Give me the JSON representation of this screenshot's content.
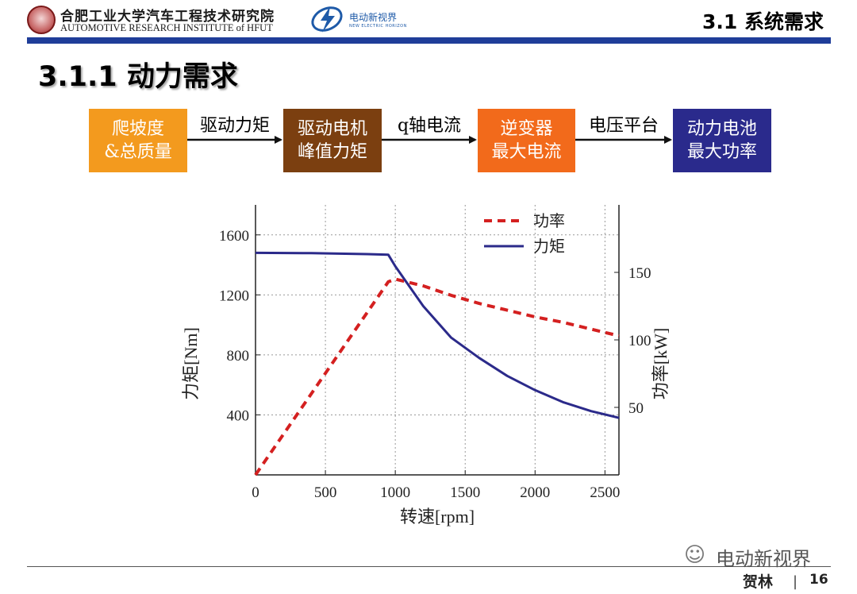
{
  "header": {
    "institute_cn": "合肥工业大学汽车工程技术研究院",
    "institute_en": "AUTOMOTIVE RESEARCH INSTITUTE of HFUT",
    "brand_cn": "电动新视界",
    "brand_en": "NEW ELECTRIC HORIZON",
    "section_title": "3.1 系统需求",
    "bar_color": "#1f3d99"
  },
  "page_title": "3.1.1 动力需求",
  "flow": {
    "boxes": [
      {
        "label": "爬坡度\n&总质量",
        "color": "#f39a1e"
      },
      {
        "label": "驱动电机\n峰值力矩",
        "color": "#7b3f10"
      },
      {
        "label": "逆变器\n最大电流",
        "color": "#f26a1b"
      },
      {
        "label": "动力电池\n最大功率",
        "color": "#2a2a8c"
      }
    ],
    "arrows": [
      "驱动力矩",
      "q轴电流",
      "电压平台"
    ]
  },
  "chart_data": {
    "type": "line",
    "xlabel": "转速[rpm]",
    "ylabel_left": "力矩[Nm]",
    "ylabel_right": "功率[kW]",
    "x_ticks": [
      0,
      500,
      1000,
      1500,
      2000,
      2500
    ],
    "y_left_ticks": [
      400,
      800,
      1200,
      1600
    ],
    "y_right_ticks": [
      50,
      100,
      150
    ],
    "xlim": [
      0,
      2600
    ],
    "ylim_left": [
      0,
      1800
    ],
    "ylim_right": [
      0,
      200
    ],
    "grid": true,
    "legend_position": "top-right",
    "series": [
      {
        "name": "功率",
        "axis": "right",
        "style": "dashed",
        "color": "#d42020",
        "x": [
          0,
          950,
          1000,
          1200,
          1400,
          1600,
          1800,
          2000,
          2200,
          2400,
          2600
        ],
        "y": [
          0,
          143,
          145,
          140,
          133,
          127,
          122,
          117,
          113,
          108,
          103
        ]
      },
      {
        "name": "力矩",
        "axis": "left",
        "style": "solid",
        "color": "#2b2a8a",
        "x": [
          0,
          400,
          800,
          950,
          1000,
          1200,
          1400,
          1600,
          1800,
          2000,
          2200,
          2400,
          2600
        ],
        "y": [
          1480,
          1478,
          1472,
          1468,
          1390,
          1125,
          915,
          780,
          660,
          565,
          485,
          425,
          380
        ]
      }
    ]
  },
  "footer": {
    "watermark": "电动新视界",
    "author": "贺林",
    "page_number": "16"
  }
}
